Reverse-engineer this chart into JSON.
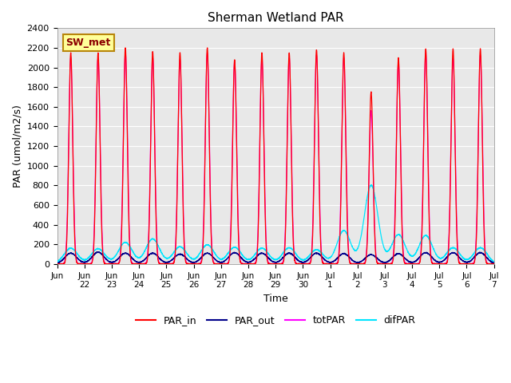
{
  "title": "Sherman Wetland PAR",
  "ylabel": "PAR (umol/m2/s)",
  "xlabel": "Time",
  "ylim": [
    0,
    2400
  ],
  "bg_color": "#e8e8e8",
  "fig_color": "#ffffff",
  "station_label": "SW_met",
  "legend_entries": [
    "PAR_in",
    "PAR_out",
    "totPAR",
    "difPAR"
  ],
  "line_colors": {
    "PAR_in": "#ff0000",
    "PAR_out": "#00008b",
    "totPAR": "#ff00ff",
    "difPAR": "#00e5ff"
  },
  "x_tick_labels": [
    "Jun\n22",
    "Jun\n23",
    "Jun\n24",
    "Jun\n25",
    "Jun\n26",
    "Jun\n27",
    "Jun\n28",
    "Jun\n29",
    "Jun\n30",
    "Jul\n1",
    "Jul\n2",
    "Jul\n3",
    "Jul\n4",
    "Jul\n5",
    "Jul\n6",
    "Jul\n7"
  ],
  "first_label": "Jun",
  "n_days": 16,
  "samples_per_day": 288,
  "peak_values_PAR_in": [
    2150,
    2150,
    2200,
    2160,
    2150,
    2200,
    2080,
    2150,
    2150,
    2180,
    2150,
    1750,
    2100,
    2190,
    2190,
    2190
  ],
  "peak_values_PAR_out": [
    110,
    120,
    110,
    110,
    100,
    110,
    115,
    110,
    110,
    110,
    105,
    95,
    105,
    115,
    115,
    115
  ],
  "peak_values_totPAR": [
    2100,
    2100,
    2150,
    2100,
    2080,
    2150,
    2060,
    2100,
    2100,
    2130,
    2100,
    1560,
    2060,
    2150,
    2090,
    2130
  ],
  "peak_values_difPAR": [
    160,
    155,
    220,
    255,
    175,
    195,
    170,
    160,
    165,
    145,
    340,
    800,
    300,
    290,
    165,
    165
  ]
}
